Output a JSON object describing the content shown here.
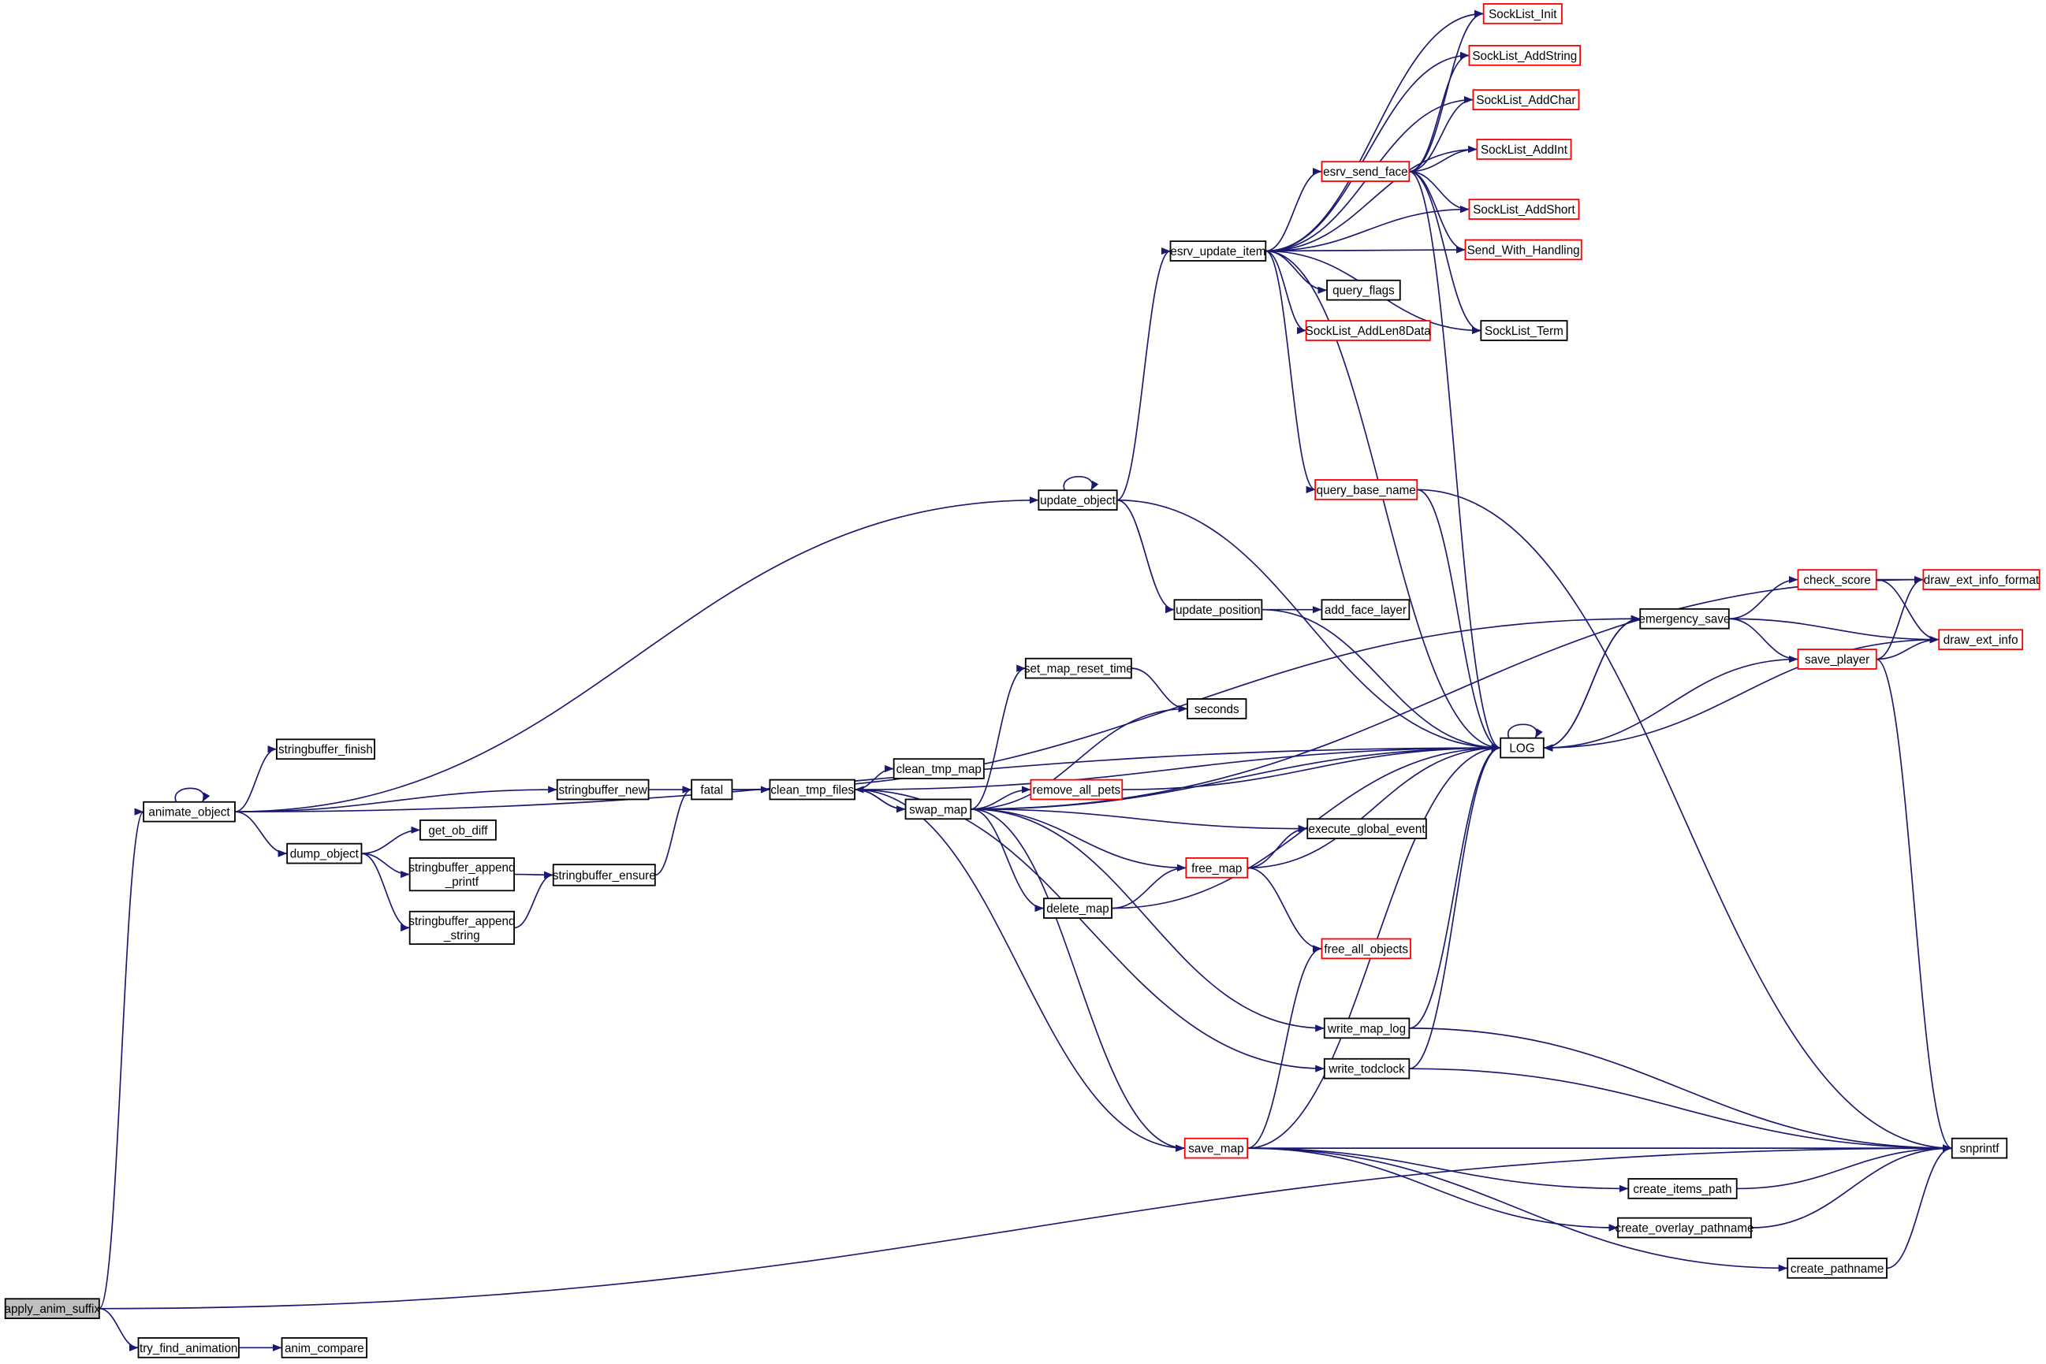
{
  "colors": {
    "edge": "#191970",
    "normal_border": "#000000",
    "truncated_border": "#ff0000",
    "root_fill": "#bfbfbf",
    "node_fill": "#ffffff"
  },
  "nodes": {
    "apply_anim_suffix": {
      "label": "apply_anim_suffix",
      "root": true
    },
    "try_find_animation": {
      "label": "try_find_animation"
    },
    "anim_compare": {
      "label": "anim_compare"
    },
    "animate_object": {
      "label": "animate_object"
    },
    "stringbuffer_finish": {
      "label": "stringbuffer_finish"
    },
    "stringbuffer_new": {
      "label": "stringbuffer_new"
    },
    "dump_object": {
      "label": "dump_object"
    },
    "get_ob_diff": {
      "label": "get_ob_diff"
    },
    "stringbuffer_append_printf": {
      "label": "stringbuffer_append\n_printf"
    },
    "stringbuffer_append_string": {
      "label": "stringbuffer_append\n_string"
    },
    "stringbuffer_ensure": {
      "label": "stringbuffer_ensure"
    },
    "fatal": {
      "label": "fatal"
    },
    "clean_tmp_files": {
      "label": "clean_tmp_files"
    },
    "clean_tmp_map": {
      "label": "clean_tmp_map"
    },
    "swap_map": {
      "label": "swap_map"
    },
    "update_object": {
      "label": "update_object"
    },
    "update_position": {
      "label": "update_position"
    },
    "add_face_layer": {
      "label": "add_face_layer"
    },
    "set_map_reset_time": {
      "label": "set_map_reset_time"
    },
    "seconds": {
      "label": "seconds"
    },
    "remove_all_pets": {
      "label": "remove_all_pets",
      "truncated": true
    },
    "execute_global_event": {
      "label": "execute_global_event"
    },
    "free_map": {
      "label": "free_map",
      "truncated": true
    },
    "delete_map": {
      "label": "delete_map"
    },
    "free_all_objects": {
      "label": "free_all_objects",
      "truncated": true
    },
    "write_map_log": {
      "label": "write_map_log"
    },
    "write_todclock": {
      "label": "write_todclock"
    },
    "save_map": {
      "label": "save_map",
      "truncated": true
    },
    "create_items_path": {
      "label": "create_items_path"
    },
    "create_overlay_pathname": {
      "label": "create_overlay_pathname"
    },
    "create_pathname": {
      "label": "create_pathname"
    },
    "snprintf": {
      "label": "snprintf"
    },
    "LOG": {
      "label": "LOG"
    },
    "query_base_name": {
      "label": "query_base_name",
      "truncated": true
    },
    "esrv_update_item": {
      "label": "esrv_update_item"
    },
    "esrv_send_face": {
      "label": "esrv_send_face",
      "truncated": true
    },
    "query_flags": {
      "label": "query_flags"
    },
    "SockList_AddLen8Data": {
      "label": "SockList_AddLen8Data",
      "truncated": true
    },
    "SockList_Term": {
      "label": "SockList_Term"
    },
    "SockList_Init": {
      "label": "SockList_Init",
      "truncated": true
    },
    "SockList_AddString": {
      "label": "SockList_AddString",
      "truncated": true
    },
    "SockList_AddChar": {
      "label": "SockList_AddChar",
      "truncated": true
    },
    "SockList_AddInt": {
      "label": "SockList_AddInt",
      "truncated": true
    },
    "SockList_AddShort": {
      "label": "SockList_AddShort",
      "truncated": true
    },
    "Send_With_Handling": {
      "label": "Send_With_Handling",
      "truncated": true
    },
    "emergency_save": {
      "label": "emergency_save"
    },
    "check_score": {
      "label": "check_score",
      "truncated": true
    },
    "save_player": {
      "label": "save_player",
      "truncated": true
    },
    "draw_ext_info_format": {
      "label": "draw_ext_info_format",
      "truncated": true
    },
    "draw_ext_info": {
      "label": "draw_ext_info",
      "truncated": true
    }
  },
  "edges": [
    [
      "apply_anim_suffix",
      "animate_object"
    ],
    [
      "apply_anim_suffix",
      "try_find_animation"
    ],
    [
      "apply_anim_suffix",
      "snprintf"
    ],
    [
      "try_find_animation",
      "anim_compare"
    ],
    [
      "animate_object",
      "animate_object"
    ],
    [
      "animate_object",
      "stringbuffer_finish"
    ],
    [
      "animate_object",
      "stringbuffer_new"
    ],
    [
      "animate_object",
      "dump_object"
    ],
    [
      "animate_object",
      "update_object"
    ],
    [
      "animate_object",
      "LOG"
    ],
    [
      "dump_object",
      "get_ob_diff"
    ],
    [
      "dump_object",
      "stringbuffer_append_printf"
    ],
    [
      "dump_object",
      "stringbuffer_append_string"
    ],
    [
      "stringbuffer_append_printf",
      "stringbuffer_ensure"
    ],
    [
      "stringbuffer_append_string",
      "stringbuffer_ensure"
    ],
    [
      "stringbuffer_ensure",
      "fatal"
    ],
    [
      "stringbuffer_new",
      "fatal"
    ],
    [
      "fatal",
      "clean_tmp_files"
    ],
    [
      "fatal",
      "emergency_save"
    ],
    [
      "clean_tmp_files",
      "clean_tmp_map"
    ],
    [
      "clean_tmp_files",
      "swap_map"
    ],
    [
      "clean_tmp_files",
      "LOG"
    ],
    [
      "clean_tmp_files",
      "write_todclock"
    ],
    [
      "clean_tmp_files",
      "save_map"
    ],
    [
      "swap_map",
      "set_map_reset_time"
    ],
    [
      "swap_map",
      "remove_all_pets"
    ],
    [
      "swap_map",
      "execute_global_event"
    ],
    [
      "swap_map",
      "free_map"
    ],
    [
      "swap_map",
      "delete_map"
    ],
    [
      "swap_map",
      "write_map_log"
    ],
    [
      "swap_map",
      "save_map"
    ],
    [
      "swap_map",
      "LOG"
    ],
    [
      "swap_map",
      "clean_tmp_files"
    ],
    [
      "swap_map",
      "draw_ext_info_format"
    ],
    [
      "swap_map",
      "seconds"
    ],
    [
      "update_object",
      "update_object"
    ],
    [
      "update_object",
      "esrv_update_item"
    ],
    [
      "update_object",
      "update_position"
    ],
    [
      "update_object",
      "LOG"
    ],
    [
      "update_position",
      "add_face_layer"
    ],
    [
      "update_position",
      "LOG"
    ],
    [
      "set_map_reset_time",
      "seconds"
    ],
    [
      "remove_all_pets",
      "LOG"
    ],
    [
      "free_map",
      "execute_global_event"
    ],
    [
      "free_map",
      "free_all_objects"
    ],
    [
      "free_map",
      "LOG"
    ],
    [
      "delete_map",
      "free_map"
    ],
    [
      "delete_map",
      "LOG"
    ],
    [
      "write_map_log",
      "LOG"
    ],
    [
      "write_map_log",
      "snprintf"
    ],
    [
      "write_todclock",
      "LOG"
    ],
    [
      "write_todclock",
      "snprintf"
    ],
    [
      "save_map",
      "free_all_objects"
    ],
    [
      "save_map",
      "LOG"
    ],
    [
      "save_map",
      "snprintf"
    ],
    [
      "save_map",
      "create_items_path"
    ],
    [
      "save_map",
      "create_overlay_pathname"
    ],
    [
      "save_map",
      "create_pathname"
    ],
    [
      "create_items_path",
      "snprintf"
    ],
    [
      "create_overlay_pathname",
      "snprintf"
    ],
    [
      "create_pathname",
      "snprintf"
    ],
    [
      "query_base_name",
      "LOG"
    ],
    [
      "query_base_name",
      "snprintf"
    ],
    [
      "esrv_update_item",
      "SockList_Init"
    ],
    [
      "esrv_update_item",
      "SockList_AddString"
    ],
    [
      "esrv_update_item",
      "SockList_AddChar"
    ],
    [
      "esrv_update_item",
      "SockList_AddInt"
    ],
    [
      "esrv_update_item",
      "SockList_AddShort"
    ],
    [
      "esrv_update_item",
      "Send_With_Handling"
    ],
    [
      "esrv_update_item",
      "esrv_send_face"
    ],
    [
      "esrv_update_item",
      "query_flags"
    ],
    [
      "esrv_update_item",
      "SockList_AddLen8Data"
    ],
    [
      "esrv_update_item",
      "SockList_Term"
    ],
    [
      "esrv_update_item",
      "query_base_name"
    ],
    [
      "esrv_update_item",
      "LOG"
    ],
    [
      "esrv_send_face",
      "SockList_Init"
    ],
    [
      "esrv_send_face",
      "SockList_AddString"
    ],
    [
      "esrv_send_face",
      "SockList_AddChar"
    ],
    [
      "esrv_send_face",
      "SockList_AddInt"
    ],
    [
      "esrv_send_face",
      "SockList_AddShort"
    ],
    [
      "esrv_send_face",
      "Send_With_Handling"
    ],
    [
      "esrv_send_face",
      "SockList_Term"
    ],
    [
      "esrv_send_face",
      "LOG"
    ],
    [
      "LOG",
      "LOG"
    ],
    [
      "LOG",
      "emergency_save"
    ],
    [
      "emergency_save",
      "check_score"
    ],
    [
      "emergency_save",
      "save_player"
    ],
    [
      "emergency_save",
      "draw_ext_info"
    ],
    [
      "emergency_save",
      "LOG"
    ],
    [
      "check_score",
      "draw_ext_info_format"
    ],
    [
      "check_score",
      "draw_ext_info"
    ],
    [
      "save_player",
      "draw_ext_info_format"
    ],
    [
      "save_player",
      "draw_ext_info"
    ],
    [
      "save_player",
      "LOG"
    ],
    [
      "save_player",
      "snprintf"
    ],
    [
      "draw_ext_info",
      "LOG"
    ]
  ]
}
